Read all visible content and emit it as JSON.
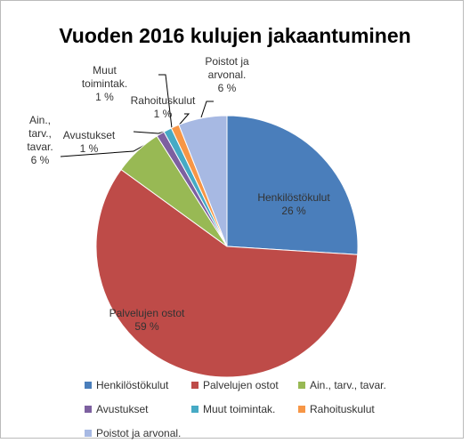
{
  "chart_data": {
    "type": "pie",
    "title": "Vuoden 2016 kulujen jakaantuminen",
    "categories": [
      "Henkilöstökulut",
      "Palvelujen ostot",
      "Ain., tarv., tavar.",
      "Avustukset",
      "Muut toimintak.",
      "Rahoituskulut",
      "Poistot ja arvonal."
    ],
    "values": [
      26,
      59,
      6,
      1,
      1,
      1,
      6
    ],
    "value_labels": [
      "26 %",
      "59 %",
      "6 %",
      "1 %",
      "1 %",
      "1 %",
      "6 %"
    ],
    "colors": [
      "#4a7ebb",
      "#be4b48",
      "#98b954",
      "#7d60a0",
      "#46aac5",
      "#f79646",
      "#a7b9e3"
    ],
    "legend": "bottom"
  }
}
